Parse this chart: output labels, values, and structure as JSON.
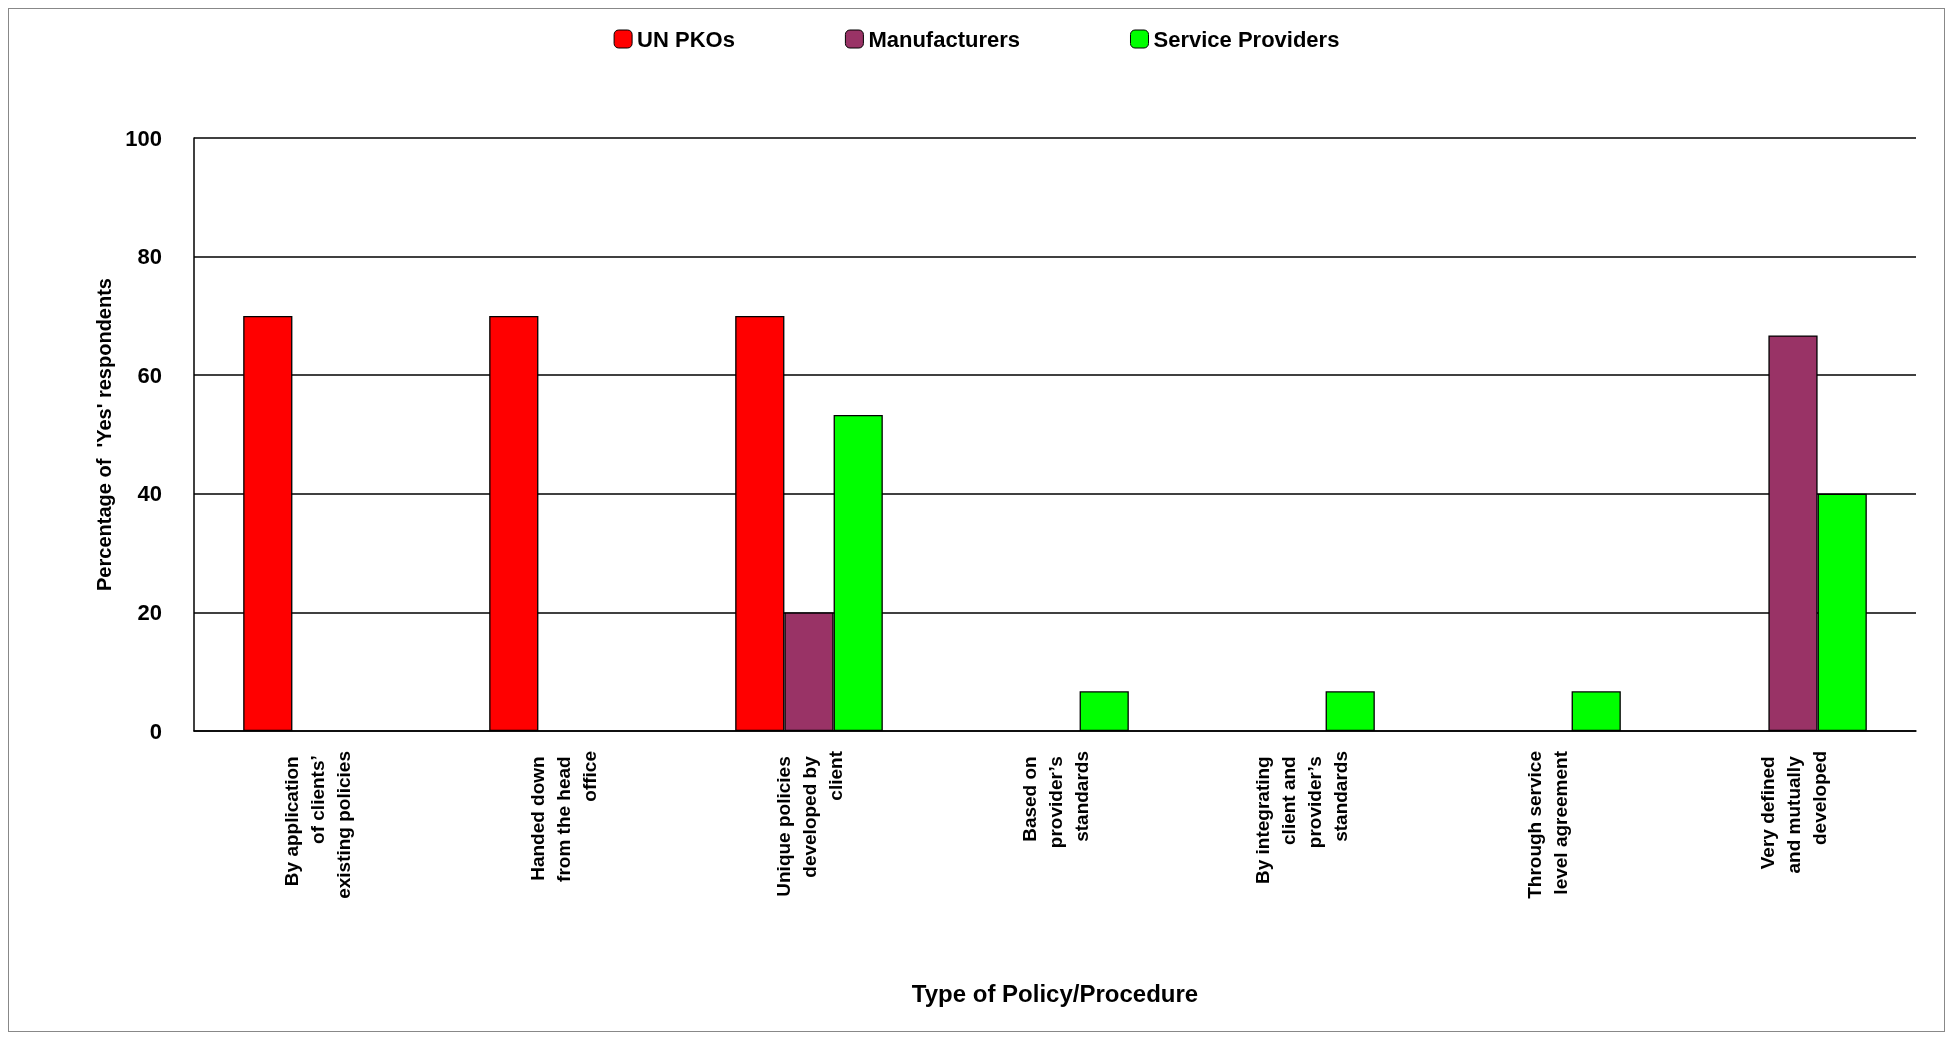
{
  "chart_data": {
    "type": "bar",
    "xlabel": "Type of Policy/Procedure",
    "ylabel": "Percentage of  'Yes' respondents",
    "categories": [
      "By application of clients’ existing policies",
      "Handed down from the head office",
      "Unique policies developed by client",
      "Based on provider’s standards",
      "By integrating client and provider’s standards",
      "Through service level agreement",
      "Very defined and mutually developed"
    ],
    "series": [
      {
        "name": "UN PKOs",
        "color": "#ff0000",
        "values": [
          70,
          70,
          70,
          null,
          null,
          null,
          null
        ]
      },
      {
        "name": "Manufacturers",
        "color": "#993366",
        "values": [
          null,
          null,
          20,
          null,
          null,
          null,
          66.7
        ]
      },
      {
        "name": "Service Providers",
        "color": "#00ff00",
        "values": [
          null,
          null,
          53.3,
          6.7,
          6.7,
          6.7,
          40
        ]
      }
    ],
    "ylim": [
      0,
      100
    ],
    "yticks": [
      0,
      20,
      40,
      60,
      80,
      100
    ],
    "grid": "y",
    "legend": "top"
  }
}
